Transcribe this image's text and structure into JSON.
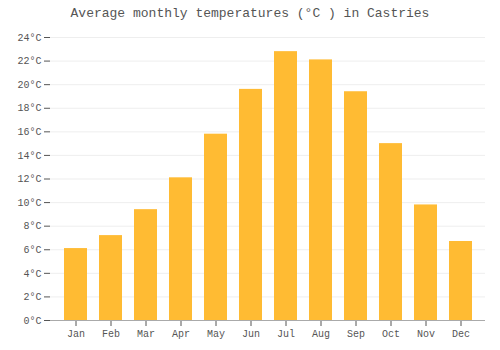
{
  "chart_data": {
    "type": "bar",
    "title": "Average monthly temperatures (°C ) in Castries",
    "categories": [
      "Jan",
      "Feb",
      "Mar",
      "Apr",
      "May",
      "Jun",
      "Jul",
      "Aug",
      "Sep",
      "Oct",
      "Nov",
      "Dec"
    ],
    "values": [
      6.1,
      7.2,
      9.4,
      12.1,
      15.8,
      19.6,
      22.8,
      22.1,
      19.4,
      15.0,
      9.8,
      6.7
    ],
    "color": "#FFBB33",
    "ylim": [
      0,
      24
    ],
    "yticks": [
      {
        "value": 0,
        "label": "0°C"
      },
      {
        "value": 2,
        "label": "2°C"
      },
      {
        "value": 4,
        "label": "4°C"
      },
      {
        "value": 6,
        "label": "6°C"
      },
      {
        "value": 8,
        "label": "8°C"
      },
      {
        "value": 10,
        "label": "10°C"
      },
      {
        "value": 12,
        "label": "12°C"
      },
      {
        "value": 14,
        "label": "14°C"
      },
      {
        "value": 16,
        "label": "16°C"
      },
      {
        "value": 18,
        "label": "18°C"
      },
      {
        "value": 20,
        "label": "20°C"
      },
      {
        "value": 22,
        "label": "22°C"
      },
      {
        "value": 24,
        "label": "24°C"
      }
    ],
    "grid": true
  }
}
